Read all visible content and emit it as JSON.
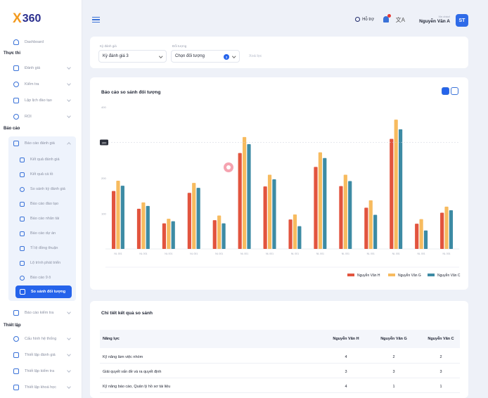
{
  "brand": {
    "logo_x": "X",
    "logo_num": "360",
    "orange": "#f39a1e",
    "navy": "#2b2f8e"
  },
  "sidebar": {
    "dashboard": "Dashboard",
    "section_thuc_thi": "Thực thi",
    "items_thuc_thi": [
      "Đánh giá",
      "Kiểm tra",
      "Lập lịch đào tạo",
      "ROI"
    ],
    "section_bao_cao": "Báo cáo",
    "group_bao_cao_danh_gia": "Báo cáo đánh giá",
    "sub_items": [
      "Kết quả đánh giá",
      "Kết quả cá tồ",
      "So sánh kỳ đánh giá",
      "Báo cáo đào tạo",
      "Báo cáo nhân tài",
      "Báo cáo dự án",
      "Tỉ lệ đồng thuận",
      "Lộ trình phát triển",
      "Báo cáo 9 ô"
    ],
    "active_item": "So sánh đối tượng",
    "bao_cao_kiem_tra": "Báo cáo kiểm tra",
    "section_thiet_lap": "Thiết lập",
    "items_thiet_lap": [
      "Cấu hình hệ thống",
      "Thiết lập đánh giá",
      "Thiết lập kiểm tra",
      "Thiết lập khoá học"
    ]
  },
  "header": {
    "help": "Hỗ trợ",
    "greeting": "Xin chào!",
    "user_name": "Nguyễn Văn A",
    "avatar": "ST",
    "translate_icon": "文A"
  },
  "filters": {
    "period_label": "Kỳ đánh giá",
    "period_value": "Kỳ đánh giá 3",
    "target_label": "Đối tượng",
    "target_value": "Chọn đối tượng",
    "target_count": "3",
    "clear": "Xoá lọc"
  },
  "chart_title": "Báo cáo so sánh đối tượng",
  "chart_data": {
    "type": "bar",
    "title": "Báo cáo so sánh đối tượng",
    "ylim": [
      0,
      400
    ],
    "yticks": [
      100,
      200,
      300,
      400
    ],
    "hover_tooltip": "300",
    "categories": [
      "NL 001",
      "NL 001",
      "NL 001",
      "NL 001",
      "NL 001",
      "NL 001",
      "NL 001",
      "NL 001",
      "NL 001",
      "NL 001",
      "NL 001",
      "NL 001",
      "NL 001",
      "NL 001"
    ],
    "series": [
      {
        "name": "Nguyễn Văn H",
        "color": "#e2543e",
        "values": [
          163,
          113,
          72,
          158,
          81,
          270,
          176,
          83,
          231,
          177,
          116,
          310,
          71,
          102
        ]
      },
      {
        "name": "Nguyễn Văn G",
        "color": "#f7bb5f",
        "values": [
          192,
          131,
          85,
          186,
          94,
          315,
          209,
          97,
          272,
          209,
          137,
          364,
          84,
          119
        ]
      },
      {
        "name": "Nguyễn Văn C",
        "color": "#3d8ba4",
        "values": [
          178,
          121,
          78,
          172,
          72,
          295,
          196,
          64,
          256,
          191,
          96,
          337,
          52,
          109
        ]
      }
    ],
    "grid": false,
    "legend": "bottom-right"
  },
  "table": {
    "title": "Chi tiết kết quả so sánh",
    "headers": [
      "Năng lực",
      "Nguyễn Văn H",
      "Nguyễn Văn G",
      "Nguyễn Văn C"
    ],
    "rows": [
      [
        "Kỹ năng làm việc nhóm",
        "4",
        "2",
        "2"
      ],
      [
        "Giải quyết vấn đề và ra quyết định",
        "3",
        "3",
        "3"
      ],
      [
        "Kỹ năng báo cáo, Quản lý hồ sơ tài liệu",
        "4",
        "1",
        "1"
      ]
    ]
  }
}
